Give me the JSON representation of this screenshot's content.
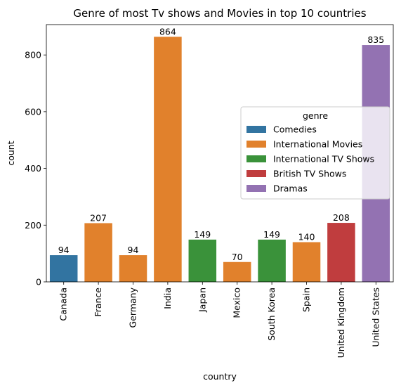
{
  "chart_data": {
    "type": "bar",
    "title": "Genre of most Tv shows and Movies in top 10 countries",
    "xlabel": "country",
    "ylabel": "count",
    "ylim": [
      0,
      907
    ],
    "yticks": [
      0,
      200,
      400,
      600,
      800
    ],
    "grid": false,
    "legend_position": "center-right",
    "legend": {
      "title": "genre",
      "entries": [
        {
          "name": "Comedies",
          "color": "#3274a1"
        },
        {
          "name": "International Movies",
          "color": "#e1812c"
        },
        {
          "name": "International TV Shows",
          "color": "#3a923a"
        },
        {
          "name": "British TV Shows",
          "color": "#c03d3e"
        },
        {
          "name": "Dramas",
          "color": "#9372b2"
        }
      ]
    },
    "categories": [
      "Canada",
      "France",
      "Germany",
      "India",
      "Japan",
      "Mexico",
      "South Korea",
      "Spain",
      "United Kingdom",
      "United States"
    ],
    "values": [
      94,
      207,
      94,
      864,
      149,
      70,
      149,
      140,
      208,
      835
    ],
    "genres": [
      "Comedies",
      "International Movies",
      "International Movies",
      "International Movies",
      "International TV Shows",
      "International Movies",
      "International TV Shows",
      "International Movies",
      "British TV Shows",
      "Dramas"
    ],
    "data_labels": [
      "94",
      "207",
      "94",
      "864",
      "149",
      "70",
      "149",
      "140",
      "208",
      "835"
    ]
  }
}
